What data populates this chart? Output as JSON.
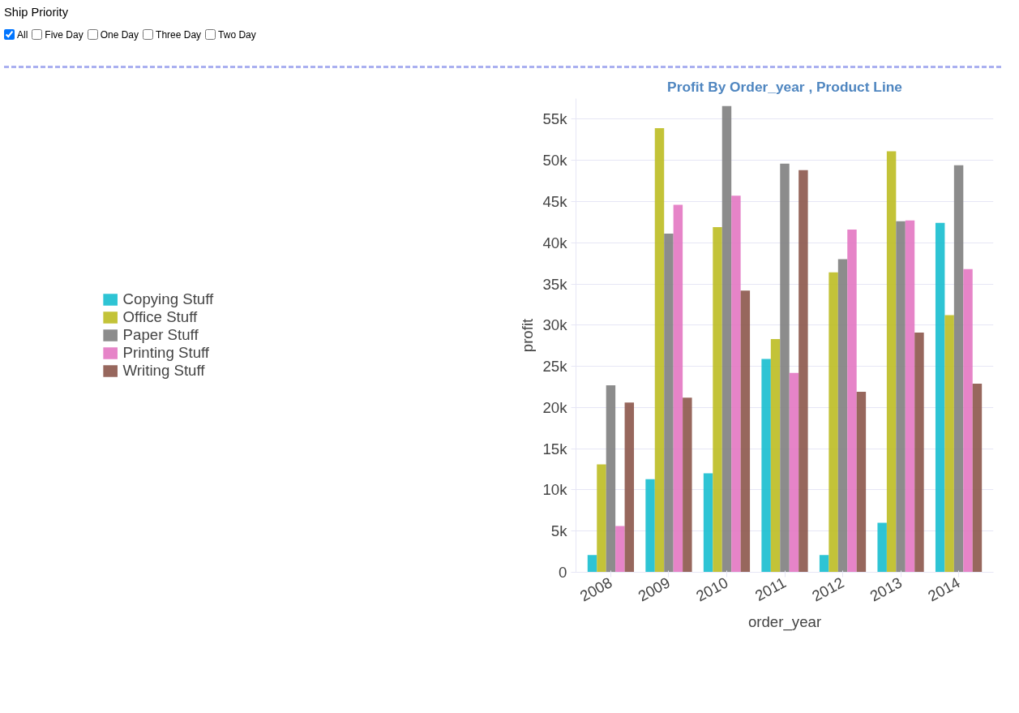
{
  "chart_data": {
    "type": "bar",
    "title": "Profit By Order_year , Product Line",
    "annotations": [
      "Ship Priority",
      "All",
      "Five Day",
      "One Day",
      "Three Day",
      "Two Day"
    ],
    "xlabel": "order_year",
    "ylabel": "profit",
    "categories": [
      "2008",
      "2009",
      "2010",
      "2011",
      "2012",
      "2013",
      "2014"
    ],
    "series": [
      {
        "name": "Copying Stuff",
        "color": "#17becf",
        "values": [
          2100,
          11300,
          12000,
          25900,
          2100,
          6000,
          42400
        ]
      },
      {
        "name": "Office Stuff",
        "color": "#bcbd22",
        "values": [
          13100,
          53900,
          41900,
          28300,
          36400,
          51100,
          31200
        ]
      },
      {
        "name": "Paper Stuff",
        "color": "#7f7f7f",
        "values": [
          22700,
          41100,
          56600,
          49600,
          38000,
          42600,
          49400
        ]
      },
      {
        "name": "Printing Stuff",
        "color": "#e377c2",
        "values": [
          5600,
          44600,
          45700,
          24200,
          41600,
          42700,
          36800
        ]
      },
      {
        "name": "Writing Stuff",
        "color": "#8c564b",
        "values": [
          20600,
          21200,
          34200,
          48800,
          21900,
          29100,
          22900
        ]
      }
    ],
    "ylim": [
      0,
      57500
    ],
    "yticks": [
      0,
      {
        "value": 5000,
        "label": "5k"
      },
      {
        "value": 10000,
        "label": "10k"
      },
      {
        "value": 15000,
        "label": "15k"
      },
      {
        "value": 20000,
        "label": "20k"
      },
      {
        "value": 25000,
        "label": "25k"
      },
      {
        "value": 30000,
        "label": "30k"
      },
      {
        "value": 35000,
        "label": "35k"
      },
      {
        "value": 40000,
        "label": "40k"
      },
      {
        "value": 45000,
        "label": "45k"
      },
      {
        "value": 50000,
        "label": "50k"
      },
      {
        "value": 55000,
        "label": "55k"
      }
    ],
    "grid": true,
    "legend": "left"
  }
}
